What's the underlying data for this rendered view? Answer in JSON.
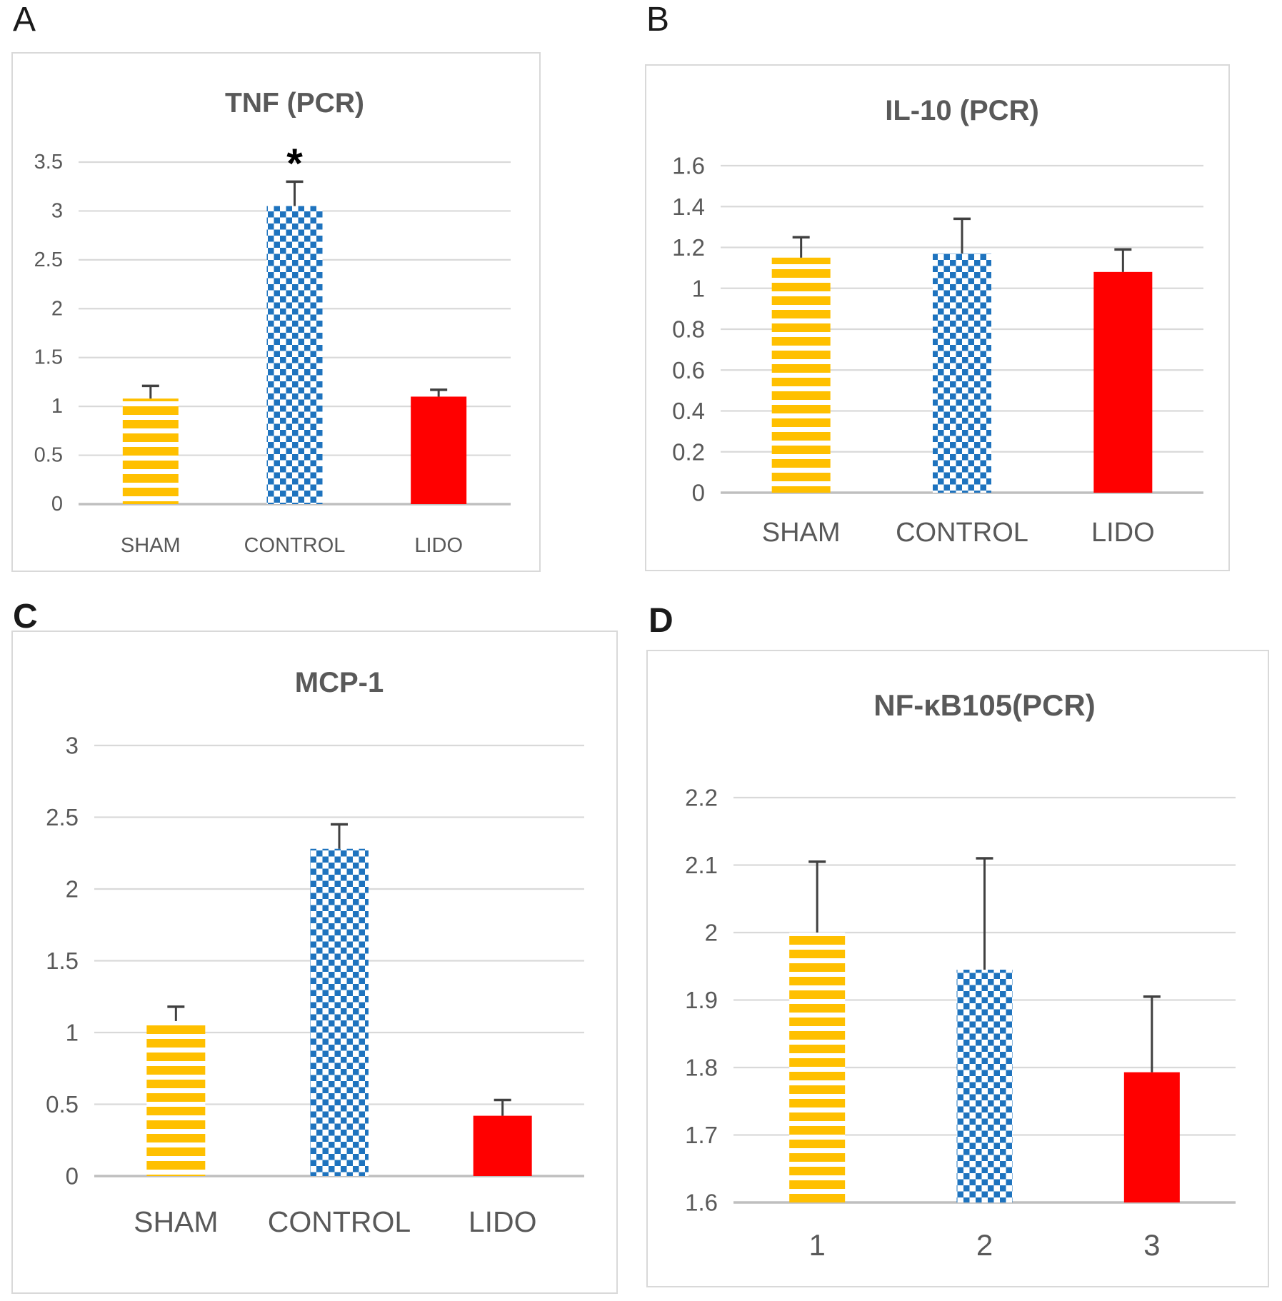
{
  "figure": {
    "description_letters": [
      "A",
      "B",
      "C",
      "D"
    ]
  },
  "colors": {
    "bar_yellow": "#FFC000",
    "bar_blue": "#1E73BE",
    "bar_red": "#FF0000",
    "gridline": "#D9D9D9",
    "axis_line": "#BFBFBF",
    "label_grey": "#595959",
    "error_bar": "#404040",
    "annotation_black": "#000000"
  },
  "chart_data": [
    {
      "type": "bar",
      "panel_letter": "A",
      "title": "TNF (PCR)",
      "categories": [
        "SHAM",
        "CONTROL",
        "LIDO"
      ],
      "values": [
        1.08,
        3.05,
        1.1
      ],
      "errors_upper": [
        1.21,
        3.3,
        1.17
      ],
      "ylim": [
        0,
        3.5
      ],
      "yticks": [
        "0",
        "0.5",
        "1",
        "1.5",
        "2",
        "2.5",
        "3",
        "3.5"
      ],
      "grid": true,
      "legend": "none",
      "bar_styles": [
        "yellow-horizontal-stripes",
        "blue-checkerboard",
        "red-solid"
      ],
      "annotations": [
        {
          "category_index": 1,
          "text": "*",
          "y": 3.48
        }
      ]
    },
    {
      "type": "bar",
      "panel_letter": "B",
      "title": "IL-10 (PCR)",
      "categories": [
        "SHAM",
        "CONTROL",
        "LIDO"
      ],
      "values": [
        1.15,
        1.17,
        1.08
      ],
      "errors_upper": [
        1.25,
        1.34,
        1.19
      ],
      "ylim": [
        0,
        1.6
      ],
      "yticks": [
        "0",
        "0.2",
        "0.4",
        "0.6",
        "0.8",
        "1",
        "1.2",
        "1.4",
        "1.6"
      ],
      "grid": true,
      "legend": "none",
      "bar_styles": [
        "yellow-horizontal-stripes",
        "blue-checkerboard",
        "red-solid"
      ],
      "annotations": []
    },
    {
      "type": "bar",
      "panel_letter": "C",
      "title": "MCP-1",
      "categories": [
        "SHAM",
        "CONTROL",
        "LIDO"
      ],
      "values": [
        1.08,
        2.28,
        0.42
      ],
      "errors_upper": [
        1.18,
        2.45,
        0.53
      ],
      "ylim": [
        0,
        3
      ],
      "yticks": [
        "0",
        "0.5",
        "1",
        "1.5",
        "2",
        "2.5",
        "3"
      ],
      "grid": true,
      "legend": "none",
      "bar_styles": [
        "yellow-horizontal-stripes",
        "blue-checkerboard",
        "red-solid"
      ],
      "annotations": []
    },
    {
      "type": "bar",
      "panel_letter": "D",
      "title": "NF-κB105(PCR)",
      "categories": [
        "1",
        "2",
        "3"
      ],
      "values": [
        2.0,
        1.945,
        1.793
      ],
      "errors_upper": [
        2.105,
        2.11,
        1.905
      ],
      "ylim": [
        1.6,
        2.2
      ],
      "yticks": [
        "1.6",
        "1.7",
        "1.8",
        "1.9",
        "2",
        "2.1",
        "2.2"
      ],
      "grid": true,
      "legend": "none",
      "bar_styles": [
        "yellow-horizontal-stripes",
        "blue-checkerboard",
        "red-solid"
      ],
      "annotations": []
    }
  ]
}
